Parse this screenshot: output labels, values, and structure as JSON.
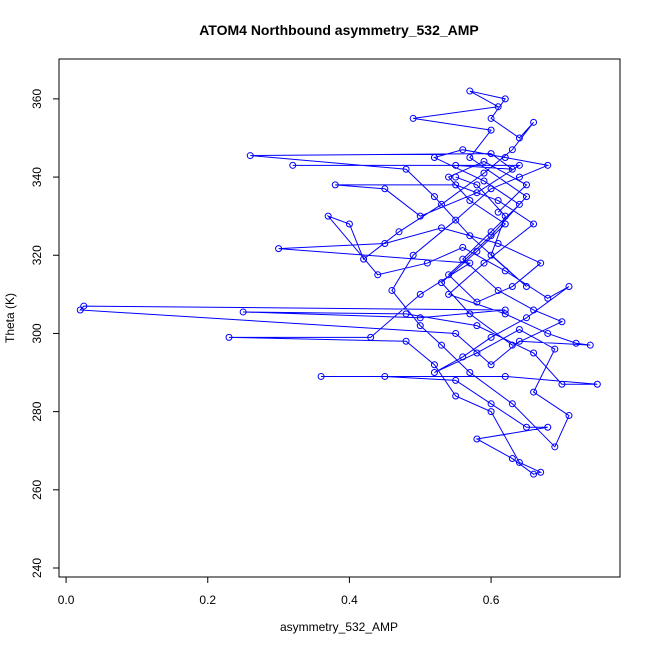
{
  "chart_data": {
    "type": "line",
    "markers": true,
    "color": "#0000ff",
    "title": "ATOM4 Northbound asymmetry_532_AMP",
    "x_label": "asymmetry_532_AMP",
    "y_label": "Theta (K)",
    "xlim": [
      -0.01,
      0.782
    ],
    "ylim": [
      237.7,
      370.2
    ],
    "xticks": [
      {
        "value": 0,
        "label": "0.0"
      },
      0.2,
      0.4,
      0.6
    ],
    "yticks": [
      240,
      260,
      280,
      300,
      320,
      340,
      360
    ],
    "x": [
      0.55,
      0.58,
      0.62,
      0.6,
      0.65,
      0.57,
      0.52,
      0.48,
      0.26,
      0.6,
      0.63,
      0.55,
      0.32,
      0.64,
      0.58,
      0.5,
      0.45,
      0.38,
      0.55,
      0.61,
      0.66,
      0.59,
      0.54,
      0.62,
      0.68,
      0.72,
      0.74,
      0.64,
      0.6,
      0.55,
      0.02,
      0.025,
      0.62,
      0.5,
      0.25,
      0.48,
      0.58,
      0.66,
      0.7,
      0.75,
      0.62,
      0.36,
      0.45,
      0.55,
      0.6,
      0.65,
      0.68,
      0.58,
      0.63,
      0.66,
      0.67,
      0.64,
      0.6,
      0.55,
      0.52,
      0.48,
      0.23,
      0.43,
      0.5,
      0.57,
      0.3,
      0.45,
      0.53,
      0.61,
      0.67,
      0.63,
      0.58,
      0.54,
      0.6,
      0.65,
      0.57,
      0.6,
      0.49,
      0.61,
      0.57,
      0.62,
      0.6,
      0.64,
      0.66,
      0.63,
      0.59,
      0.53,
      0.47,
      0.42,
      0.4,
      0.37,
      0.44,
      0.51,
      0.56,
      0.62,
      0.68,
      0.71,
      0.65,
      0.6,
      0.56,
      0.52,
      0.58,
      0.64,
      0.69,
      0.66,
      0.71,
      0.69,
      0.63,
      0.57,
      0.53,
      0.5,
      0.46,
      0.49,
      0.55,
      0.6,
      0.64,
      0.68,
      0.62,
      0.56,
      0.52,
      0.59,
      0.64,
      0.6,
      0.56,
      0.61,
      0.66,
      0.7,
      0.63,
      0.57,
      0.53,
      0.58,
      0.62,
      0.57,
      0.54,
      0.59,
      0.65,
      0.61
    ],
    "values": [
      340,
      338,
      330,
      320,
      312,
      325,
      335,
      342,
      345.5,
      346,
      342,
      343,
      343,
      343,
      336,
      330,
      337,
      338,
      338,
      334,
      328,
      318,
      310,
      305,
      300,
      297.5,
      297,
      298,
      292,
      300,
      306,
      307,
      306,
      304,
      305.5,
      305,
      302,
      295,
      287,
      287,
      289,
      289,
      289,
      288,
      282,
      276,
      276,
      273,
      268,
      264,
      264.5,
      267,
      280,
      284,
      292,
      298,
      299,
      299,
      310,
      318,
      321.7,
      323,
      327,
      323,
      318,
      312,
      308,
      315,
      325,
      335,
      345,
      352,
      355,
      358,
      362,
      360,
      355,
      350,
      354,
      347,
      341,
      333,
      326,
      319,
      328,
      330,
      315,
      318,
      322,
      316,
      309,
      312,
      304,
      299,
      294,
      290,
      295,
      301,
      296,
      285,
      279,
      271,
      282,
      290,
      297,
      302,
      311,
      320,
      329,
      337,
      340,
      343,
      345,
      347,
      345,
      339,
      333,
      326,
      319,
      311,
      306,
      303,
      297,
      305,
      313,
      321,
      328,
      334,
      340,
      344,
      338,
      331
    ]
  }
}
